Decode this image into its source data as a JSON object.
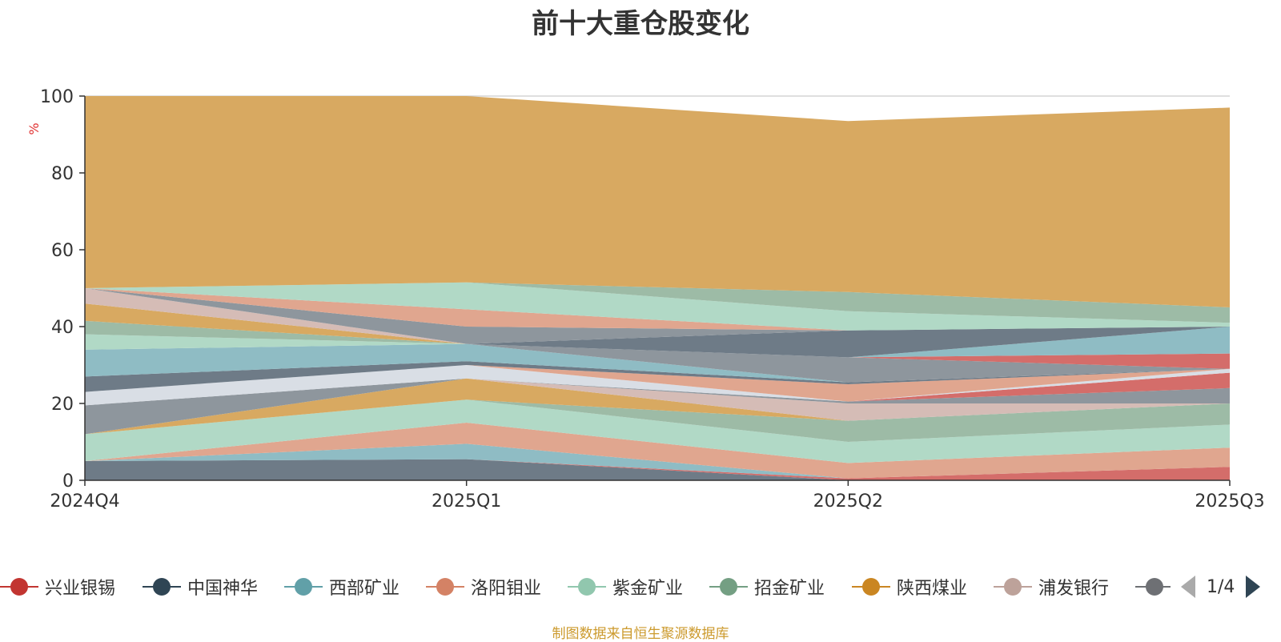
{
  "title": "前十大重仓股变化",
  "source_note": "制图数据来自恒生聚源数据库",
  "legend": {
    "pager_text": "1/4",
    "visible_items": [
      {
        "name": "兴业银锡",
        "color": "#c23531"
      },
      {
        "name": "中国神华",
        "color": "#2f4554"
      },
      {
        "name": "西部矿业",
        "color": "#61a0a8"
      },
      {
        "name": "洛阳钼业",
        "color": "#d48265"
      },
      {
        "name": "紫金矿业",
        "color": "#91c7ae"
      },
      {
        "name": "招金矿业",
        "color": "#749f83"
      },
      {
        "name": "陕西煤业",
        "color": "#ca8622"
      },
      {
        "name": "浦发银行",
        "color": "#bda29a"
      },
      {
        "name": "…",
        "color": "#6e7074"
      }
    ]
  },
  "chart_data": {
    "type": "area",
    "stacked": true,
    "title": "前十大重仓股变化",
    "ylabel": "%",
    "xlabel": "",
    "categories": [
      "2024Q4",
      "2025Q1",
      "2025Q2",
      "2025Q3"
    ],
    "ylim": [
      0,
      100
    ],
    "yticks": [
      0,
      20,
      40,
      60,
      80,
      100
    ],
    "grid": true,
    "layers": [
      {
        "color": "#6e7b87",
        "opacity": 1.0,
        "top": [
          5,
          5.5,
          0,
          0
        ]
      },
      {
        "color": "#d46d6a",
        "opacity": 1.0,
        "top": [
          5,
          5.5,
          0.5,
          3.5
        ]
      },
      {
        "color": "#8fbcc4",
        "opacity": 1.0,
        "top": [
          5,
          9.5,
          0.5,
          3.5
        ]
      },
      {
        "color": "#e0a68f",
        "opacity": 1.0,
        "top": [
          5,
          15,
          4.5,
          8.5
        ]
      },
      {
        "color": "#b1d9c6",
        "opacity": 1.0,
        "top": [
          12,
          21,
          10,
          14.5
        ]
      },
      {
        "color": "#9dbba6",
        "opacity": 1.0,
        "top": [
          12,
          21,
          15.5,
          20
        ]
      },
      {
        "color": "#d8a961",
        "opacity": 1.0,
        "top": [
          12,
          26.5,
          15.5,
          20
        ]
      },
      {
        "color": "#d5bcb6",
        "opacity": 1.0,
        "top": [
          12,
          26.5,
          20,
          20
        ]
      },
      {
        "color": "#8e969d",
        "opacity": 1.0,
        "top": [
          19.5,
          26.5,
          20.5,
          24
        ]
      },
      {
        "color": "#d46d6a",
        "opacity": 1.0,
        "top": [
          19.5,
          26.5,
          20.5,
          28
        ]
      },
      {
        "color": "#d9dee5",
        "opacity": 1.0,
        "top": [
          23,
          30,
          20.5,
          29
        ]
      },
      {
        "color": "#e0a68f",
        "opacity": 1.0,
        "top": [
          23,
          30,
          25,
          29
        ]
      },
      {
        "color": "#8e969d",
        "opacity": 1.0,
        "top": [
          23,
          30,
          25,
          29
        ]
      },
      {
        "color": "#6e7b87",
        "opacity": 1.0,
        "top": [
          27,
          31,
          25.5,
          29
        ]
      },
      {
        "color": "#8fbcc4",
        "opacity": 1.0,
        "top": [
          34,
          35.5,
          25.5,
          29
        ]
      },
      {
        "color": "#8e969d",
        "opacity": 1.0,
        "top": [
          34,
          35.5,
          32,
          29
        ]
      },
      {
        "color": "#d46d6a",
        "opacity": 1.0,
        "top": [
          34,
          35.5,
          32,
          33
        ]
      },
      {
        "color": "#b1d9c6",
        "opacity": 1.0,
        "top": [
          38,
          35.5,
          32,
          33
        ]
      },
      {
        "color": "#9dbba6",
        "opacity": 1.0,
        "top": [
          41.5,
          35.5,
          32,
          33
        ]
      },
      {
        "color": "#d8a961",
        "opacity": 1.0,
        "top": [
          46,
          35.5,
          32,
          33
        ]
      },
      {
        "color": "#8fbcc4",
        "opacity": 1.0,
        "top": [
          46,
          35.5,
          32,
          40
        ]
      },
      {
        "color": "#6e7b87",
        "opacity": 1.0,
        "top": [
          46,
          35.5,
          39,
          40
        ]
      },
      {
        "color": "#d5bcb6",
        "opacity": 1.0,
        "top": [
          50,
          35.5,
          39,
          40
        ]
      },
      {
        "color": "#8e969d",
        "opacity": 1.0,
        "top": [
          50,
          40,
          39,
          40
        ]
      },
      {
        "color": "#e0a68f",
        "opacity": 1.0,
        "top": [
          50,
          44.5,
          39,
          40
        ]
      },
      {
        "color": "#b1d9c6",
        "opacity": 1.0,
        "top": [
          50,
          51.5,
          44,
          41
        ]
      },
      {
        "color": "#9dbba6",
        "opacity": 1.0,
        "top": [
          50,
          51.5,
          49,
          45
        ]
      },
      {
        "color": "#d8a961",
        "opacity": 1.0,
        "top": [
          100,
          100,
          93.5,
          97
        ]
      }
    ]
  }
}
